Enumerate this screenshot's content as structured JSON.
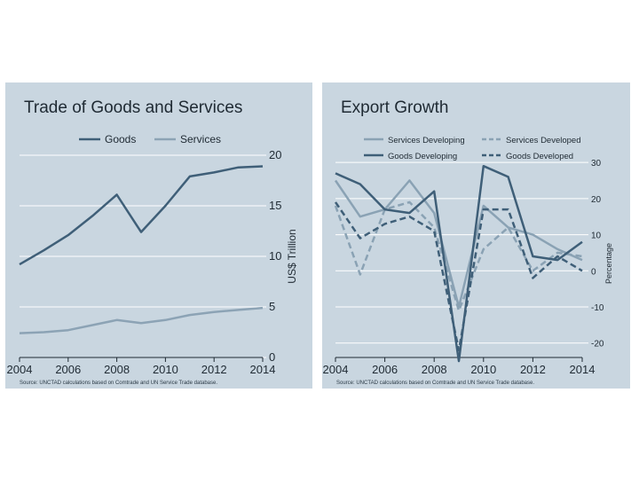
{
  "chart_data": [
    {
      "type": "line",
      "title": "Trade of Goods and Services",
      "ylabel": "US$ Trillion",
      "xlabel": "",
      "source": "Source: UNCTAD calculations based on Comtrade and UN Service Trade database.",
      "x": [
        2004,
        2005,
        2006,
        2007,
        2008,
        2009,
        2010,
        2011,
        2012,
        2013,
        2014
      ],
      "xticks": [
        "2004",
        "2006",
        "2008",
        "2010",
        "2012",
        "2014"
      ],
      "yticks": [
        "0",
        "5",
        "10",
        "15",
        "20"
      ],
      "xlim": [
        2004,
        2014
      ],
      "ylim": [
        0,
        20
      ],
      "legend_position": "top",
      "series": [
        {
          "name": "Goods",
          "color": "#3f5f78",
          "dash": "solid",
          "values": [
            9.2,
            10.6,
            12.1,
            14.0,
            16.1,
            12.4,
            15.0,
            17.9,
            18.3,
            18.8,
            18.9
          ]
        },
        {
          "name": "Services",
          "color": "#8ca3b5",
          "dash": "solid",
          "values": [
            2.4,
            2.5,
            2.7,
            3.2,
            3.7,
            3.4,
            3.7,
            4.2,
            4.5,
            4.7,
            4.9
          ]
        }
      ]
    },
    {
      "type": "line",
      "title": "Export Growth",
      "ylabel": "Percentage",
      "xlabel": "",
      "source": "Source: UNCTAD calculations based on Comtrade and UN Service Trade database.",
      "x": [
        2004,
        2005,
        2006,
        2007,
        2008,
        2009,
        2010,
        2011,
        2012,
        2013,
        2014
      ],
      "xticks": [
        "2004",
        "2006",
        "2008",
        "2010",
        "2012",
        "2014"
      ],
      "yticks": [
        "-20",
        "-10",
        "0",
        "10",
        "20",
        "30"
      ],
      "xlim": [
        2004,
        2014
      ],
      "ylim": [
        -24,
        32
      ],
      "legend_position": "top",
      "series": [
        {
          "name": "Services Developing",
          "color": "#8aa2b4",
          "dash": "solid",
          "values": [
            25,
            15,
            17,
            25,
            16,
            -10,
            18,
            12,
            10,
            6,
            3
          ]
        },
        {
          "name": "Services Developed",
          "color": "#8aa2b4",
          "dash": "dashed",
          "values": [
            18,
            -1,
            17,
            19,
            12,
            -11,
            6,
            12,
            0,
            5,
            4
          ]
        },
        {
          "name": "Goods Developing",
          "color": "#3f5f78",
          "dash": "solid",
          "values": [
            27,
            24,
            17,
            16,
            22,
            -25,
            29,
            26,
            4,
            3,
            8
          ]
        },
        {
          "name": "Goods Developed",
          "color": "#3f5f78",
          "dash": "dashed",
          "values": [
            19,
            9,
            13,
            15,
            11,
            -22,
            17,
            17,
            -2,
            4,
            0
          ]
        }
      ]
    }
  ]
}
